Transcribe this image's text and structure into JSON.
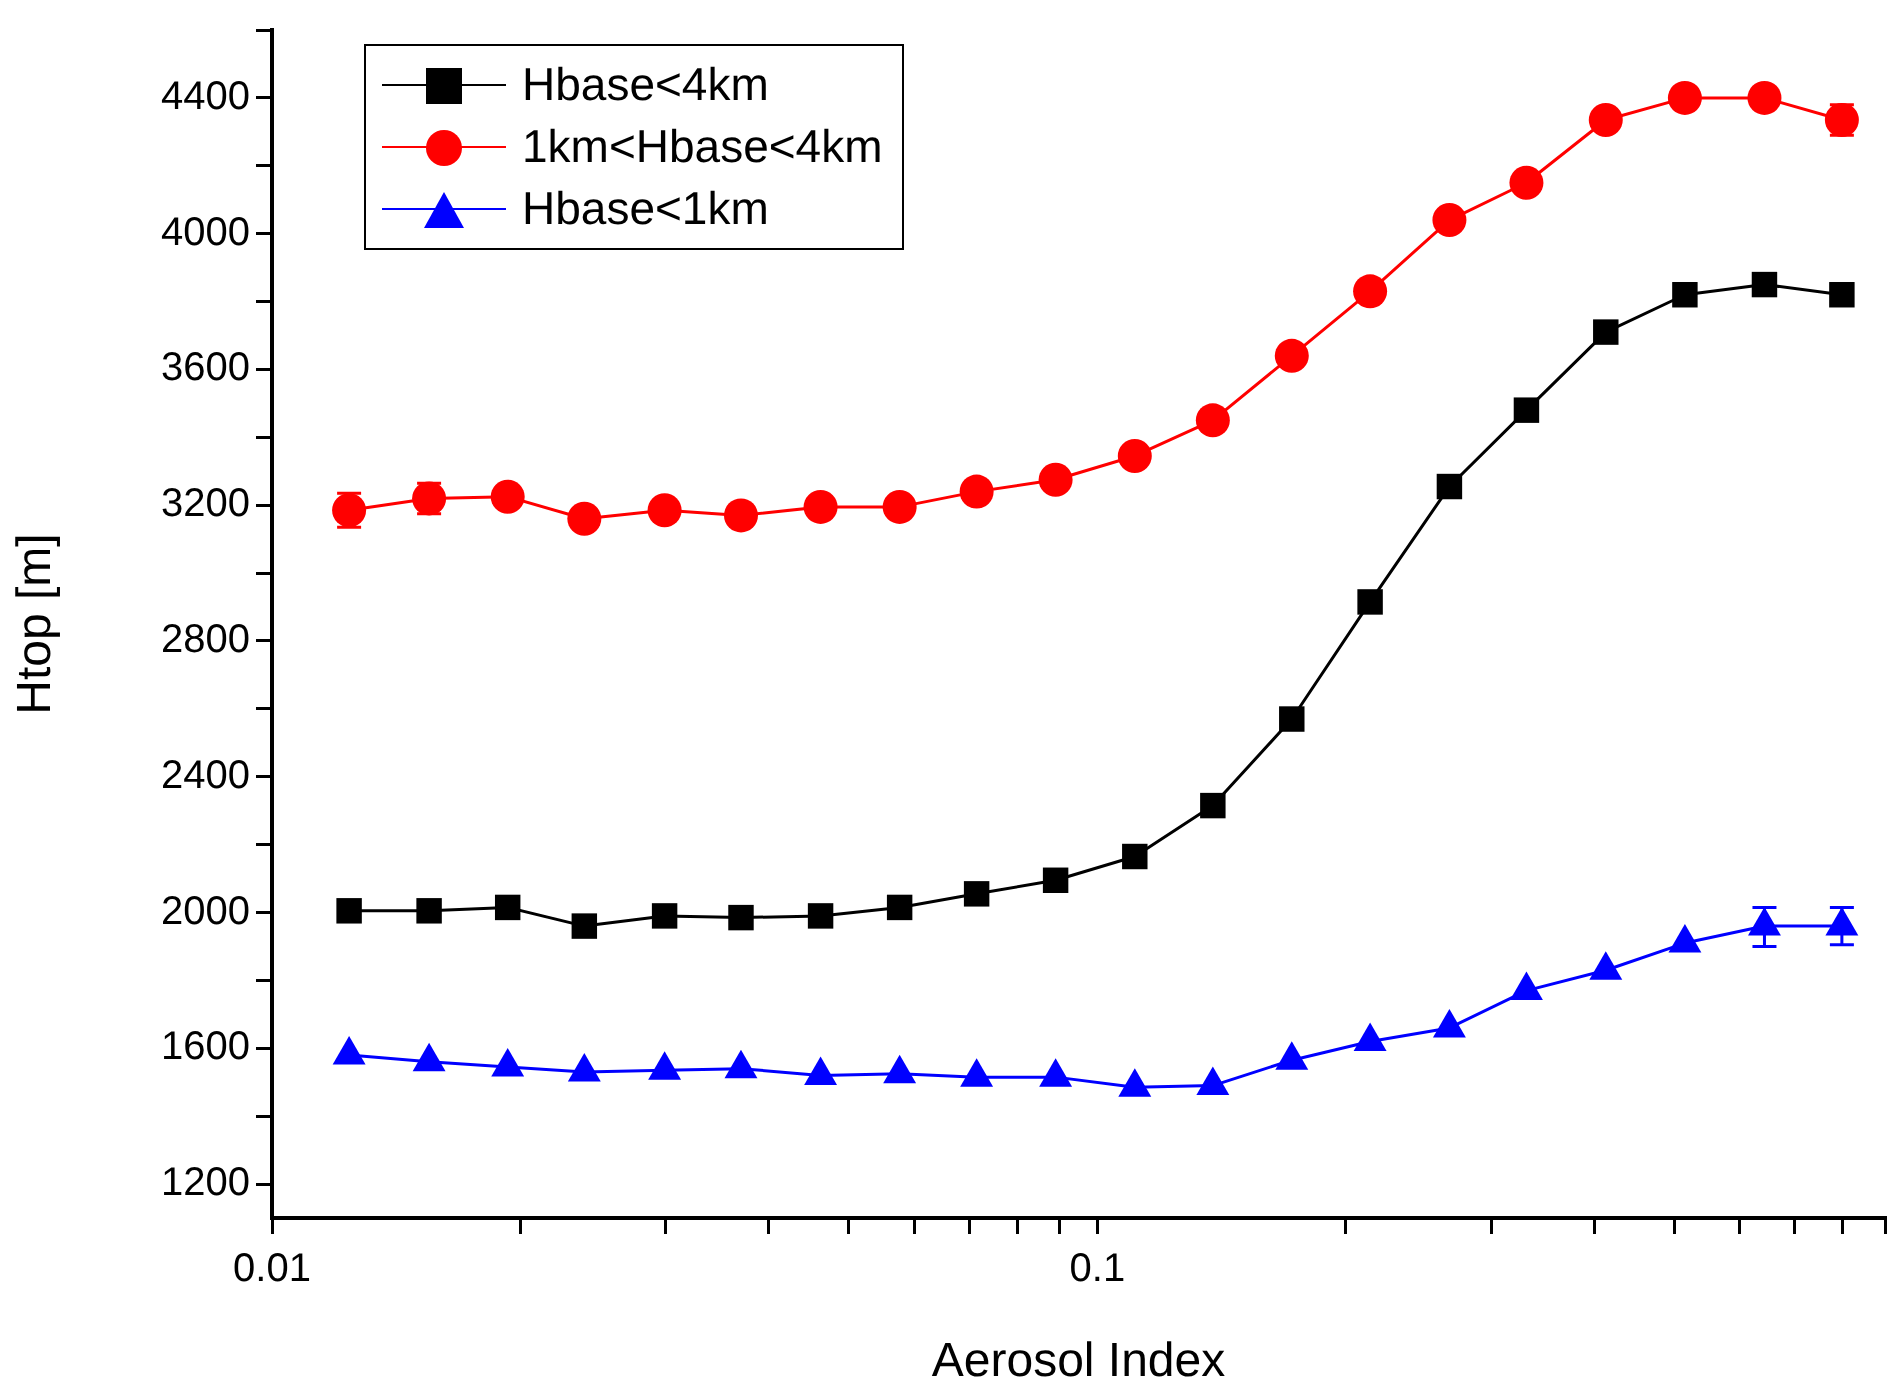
{
  "chart_data": {
    "type": "line",
    "xlabel": "Aerosol Index",
    "ylabel": "Htop [m]",
    "log": "x",
    "x": [
      0.0124,
      0.0155,
      0.0193,
      0.0239,
      0.0299,
      0.037,
      0.0462,
      0.0576,
      0.0714,
      0.089,
      0.111,
      0.138,
      0.172,
      0.214,
      0.267,
      0.331,
      0.413,
      0.515,
      0.643,
      0.798
    ],
    "xlim": [
      0.01,
      0.9
    ],
    "xticks": [
      {
        "value": 0.01,
        "label": "0.01"
      },
      {
        "value": 0.02,
        "label": null
      },
      {
        "value": 0.03,
        "label": null
      },
      {
        "value": 0.04,
        "label": null
      },
      {
        "value": 0.05,
        "label": null
      },
      {
        "value": 0.06,
        "label": null
      },
      {
        "value": 0.07,
        "label": null
      },
      {
        "value": 0.08,
        "label": null
      },
      {
        "value": 0.09,
        "label": null
      },
      {
        "value": 0.1,
        "label": "0.1"
      },
      {
        "value": 0.2,
        "label": null
      },
      {
        "value": 0.3,
        "label": null
      },
      {
        "value": 0.4,
        "label": null
      },
      {
        "value": 0.5,
        "label": null
      },
      {
        "value": 0.6,
        "label": null
      },
      {
        "value": 0.7,
        "label": null
      },
      {
        "value": 0.8,
        "label": null
      },
      {
        "value": 0.9,
        "label": null
      }
    ],
    "ylim": [
      1100,
      4600
    ],
    "yticks": [
      1200,
      {
        "value": 1400,
        "label": null
      },
      1600,
      {
        "value": 1800,
        "label": null
      },
      2000,
      {
        "value": 2200,
        "label": null
      },
      2400,
      {
        "value": 2600,
        "label": null
      },
      2800,
      {
        "value": 3000,
        "label": null
      },
      3200,
      {
        "value": 3400,
        "label": null
      },
      3600,
      {
        "value": 3800,
        "label": null
      },
      4000,
      {
        "value": 4200,
        "label": null
      },
      4400,
      {
        "value": 4600,
        "label": null
      }
    ],
    "grid": false,
    "legend": "top left",
    "line_style": "solid",
    "series": [
      {
        "name": "Hbase<4km",
        "color": "#000000",
        "marker": "square",
        "values": [
          2005,
          2005,
          2015,
          1960,
          1990,
          1985,
          1990,
          2015,
          2055,
          2095,
          2165,
          2315,
          2570,
          2915,
          3255,
          3480,
          3710,
          3820,
          3850,
          3820
        ]
      },
      {
        "name": "1km<Hbase<4km",
        "color": "#ff0000",
        "marker": "circle",
        "values": [
          3185,
          3220,
          3225,
          3160,
          3185,
          3170,
          3195,
          3195,
          3240,
          3275,
          3345,
          3450,
          3640,
          3830,
          4040,
          4150,
          4335,
          4400,
          4400,
          4335
        ],
        "errors": [
          50,
          45,
          null,
          null,
          null,
          null,
          null,
          null,
          null,
          null,
          null,
          null,
          null,
          null,
          null,
          null,
          null,
          null,
          null,
          45
        ]
      },
      {
        "name": "Hbase<1km",
        "color": "#0000ff",
        "marker": "triangle",
        "values": [
          1580,
          1560,
          1545,
          1530,
          1535,
          1540,
          1520,
          1525,
          1515,
          1515,
          1485,
          1490,
          1565,
          1620,
          1660,
          1770,
          1830,
          1910,
          1960,
          1960
        ],
        "errors": [
          null,
          null,
          null,
          null,
          null,
          null,
          null,
          null,
          null,
          null,
          null,
          null,
          null,
          null,
          null,
          null,
          null,
          null,
          [
            1900,
            2015
          ],
          55
        ]
      }
    ]
  }
}
